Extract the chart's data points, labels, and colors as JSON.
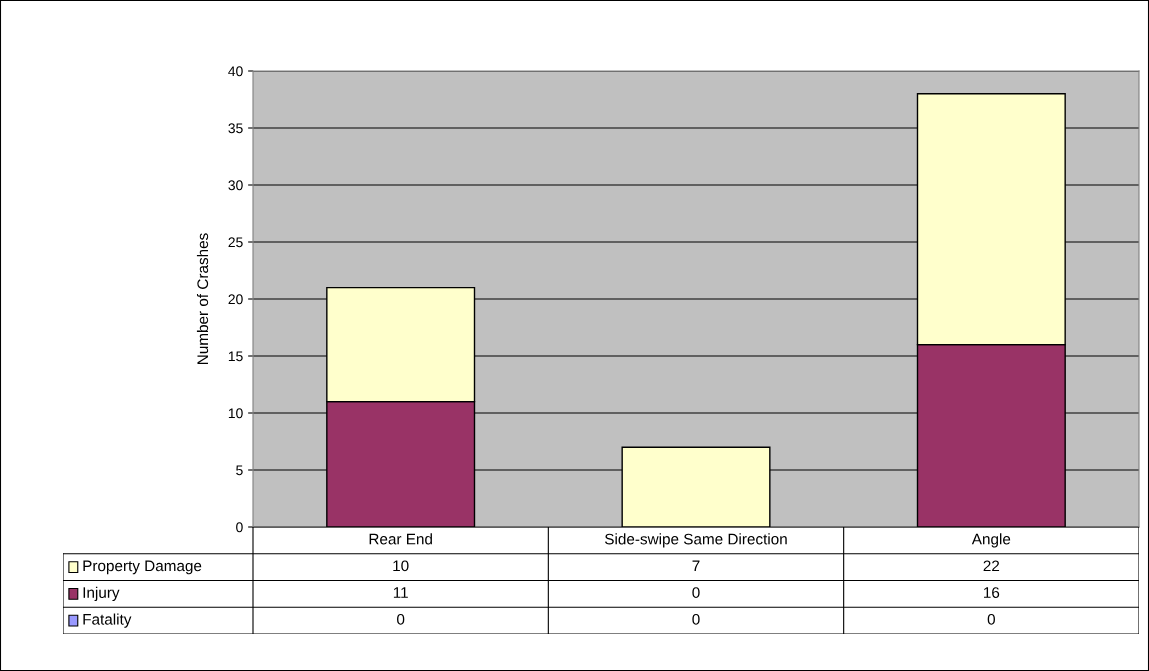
{
  "chart_data": {
    "type": "bar",
    "stacked": true,
    "ylabel": "Number of Crashes",
    "categories": [
      "Rear End",
      "Side-swipe Same Direction",
      "Angle"
    ],
    "series": [
      {
        "name": "Fatality",
        "color": "#9999ff",
        "values": [
          0,
          0,
          0
        ]
      },
      {
        "name": "Injury",
        "color": "#993366",
        "values": [
          11,
          0,
          16
        ]
      },
      {
        "name": "Property Damage",
        "color": "#ffffcc",
        "values": [
          10,
          7,
          22
        ]
      }
    ],
    "ylim": [
      0,
      40
    ],
    "yticks": [
      0,
      5,
      10,
      15,
      20,
      25,
      30,
      35,
      40
    ],
    "grid": "y",
    "data_labels": true,
    "legend": "bottom left"
  }
}
